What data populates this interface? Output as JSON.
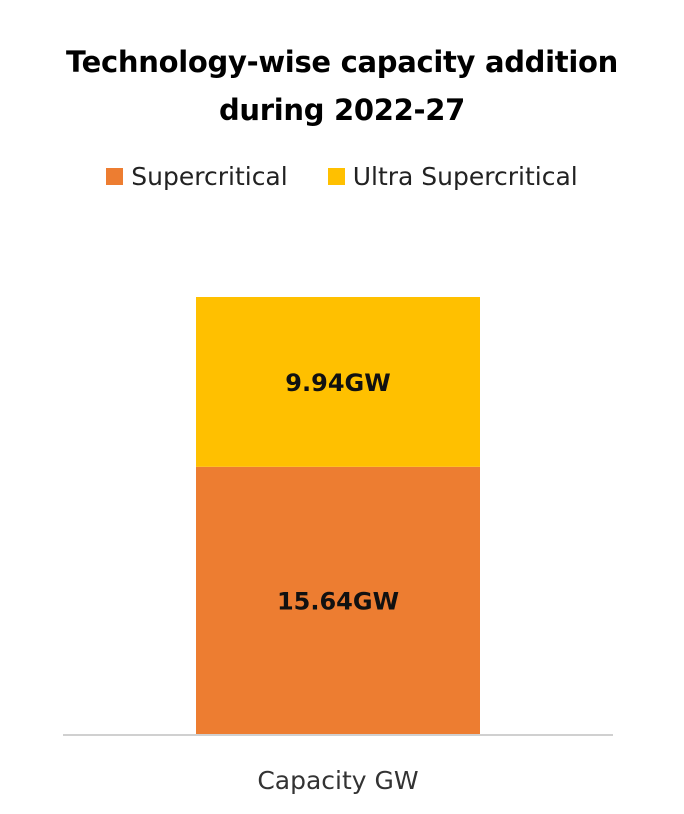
{
  "chart_data": {
    "type": "bar",
    "stacked": true,
    "title": "Technology-wise capacity addition during 2022-27",
    "title_lines": [
      "Technology-wise capacity addition",
      "during 2022-27"
    ],
    "categories": [
      "Capacity GW"
    ],
    "series": [
      {
        "name": "Supercritical",
        "values": [
          15.64
        ],
        "label": "15.64GW",
        "color": "#ED7D31"
      },
      {
        "name": "Ultra Supercritical",
        "values": [
          9.94
        ],
        "label": "9.94GW",
        "color": "#FFC000"
      }
    ],
    "legend_position": "top",
    "grid": false,
    "ylim": [
      0,
      25.58
    ]
  }
}
